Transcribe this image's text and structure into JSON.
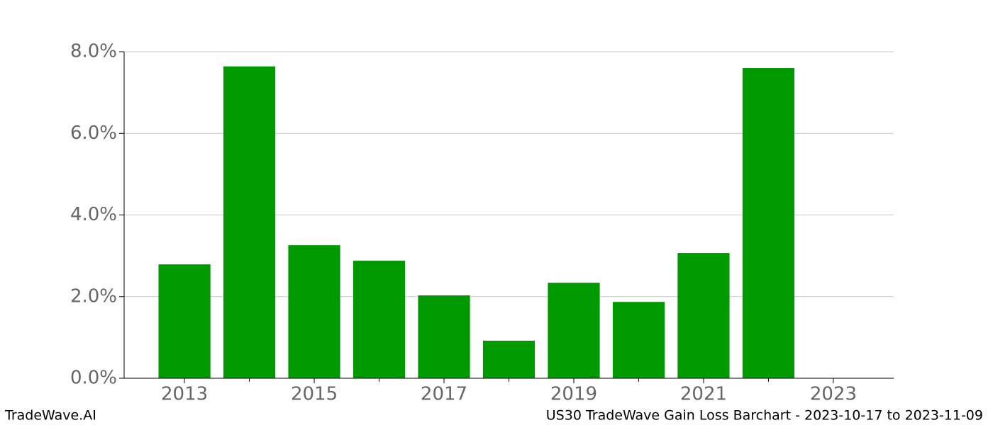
{
  "chart_data": {
    "type": "bar",
    "title": "US30 TradeWave Gain Loss Barchart - 2023-10-17 to 2023-11-09",
    "watermark": "TradeWave.AI",
    "x": [
      2013,
      2014,
      2015,
      2016,
      2017,
      2018,
      2019,
      2020,
      2021,
      2022
    ],
    "values": [
      2.79,
      7.64,
      3.26,
      2.88,
      2.03,
      0.92,
      2.34,
      1.87,
      3.07,
      7.6
    ],
    "color": "#009900",
    "bar_width": 0.8,
    "xlim": [
      2012.07,
      2023.93
    ],
    "xticks": [
      2013,
      2015,
      2017,
      2019,
      2021,
      2023
    ],
    "xminorticks": [
      2014,
      2016,
      2018,
      2020,
      2022
    ],
    "ylim": [
      0,
      8
    ],
    "yticks": [
      {
        "value": 0,
        "label": "0.0%"
      },
      {
        "value": 2,
        "label": "2.0%"
      },
      {
        "value": 4,
        "label": "4.0%"
      },
      {
        "value": 6,
        "label": "6.0%"
      },
      {
        "value": 8,
        "label": "8.0%"
      }
    ],
    "grid": true
  }
}
